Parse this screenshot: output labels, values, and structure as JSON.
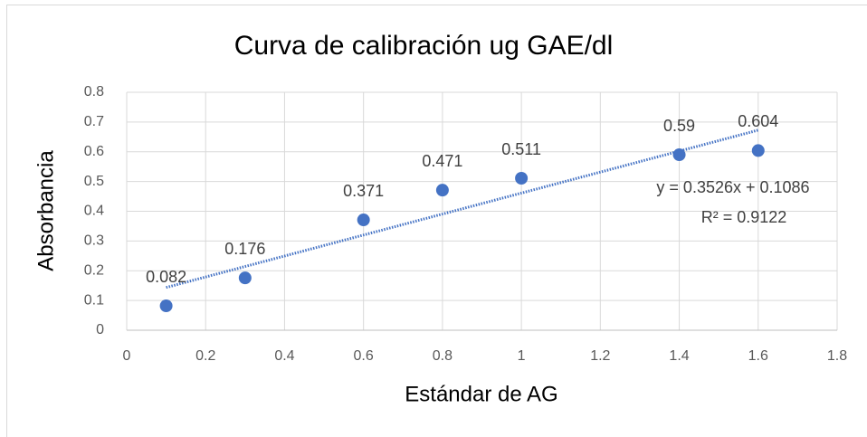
{
  "chart_data": {
    "type": "scatter",
    "title": "Curva de calibración ug GAE/dl",
    "x_label": "Estándar de AG",
    "y_label": "Absorbancia",
    "series": [
      {
        "color": "#4472c4",
        "x": [
          0.1,
          0.3,
          0.6,
          0.8,
          1,
          1.4,
          1.6
        ],
        "values": [
          0.082,
          0.176,
          0.371,
          0.471,
          0.511,
          0.59,
          0.604
        ]
      }
    ],
    "trendline": {
      "equation": "y = 0.3526x + 0.1086",
      "r_squared": "R² = 0.9122",
      "color": "#4472c4"
    },
    "xlim": [
      0,
      1.8
    ],
    "xticks": [
      0,
      0.2,
      0.4,
      0.6,
      0.8,
      1,
      1.2,
      1.4,
      1.6,
      1.8
    ],
    "ylim": [
      0,
      0.8
    ],
    "yticks": [
      0,
      0.1,
      0.2,
      0.3,
      0.4,
      0.5,
      0.6,
      0.7,
      0.8
    ],
    "grid": true
  }
}
